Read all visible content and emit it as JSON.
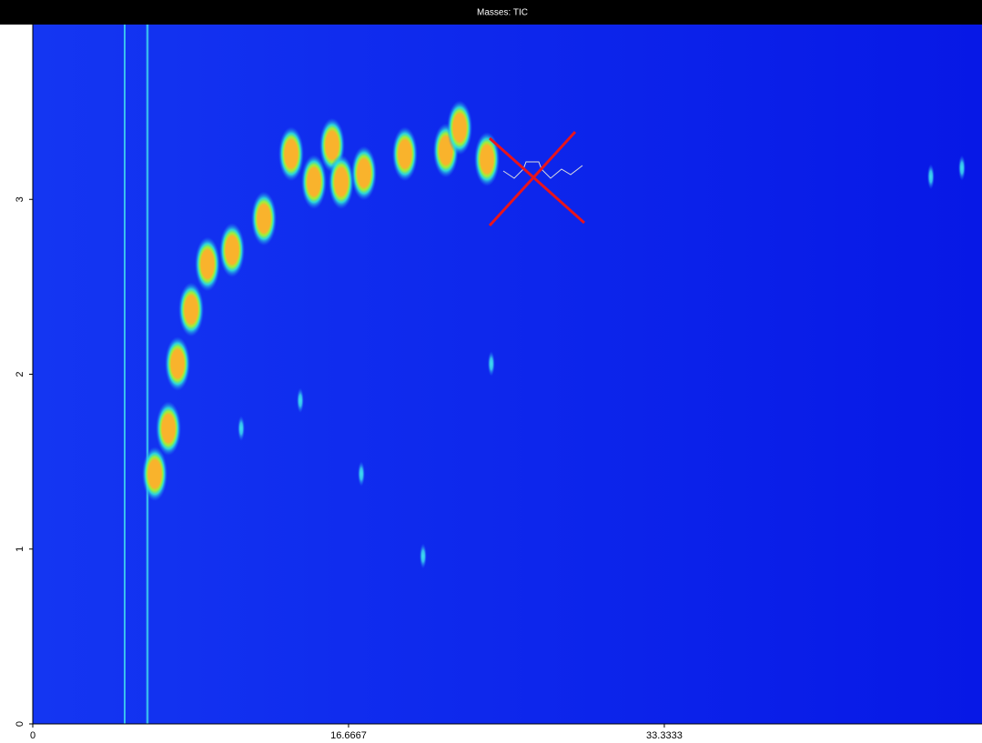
{
  "chart_data": {
    "type": "scatter",
    "title": "Masses: TIC",
    "xlim": [
      0,
      50.1
    ],
    "ylim": [
      0,
      4
    ],
    "xticks": [
      0,
      16.6667,
      33.3333
    ],
    "yticks": [
      0,
      1,
      2,
      3
    ],
    "series": [
      {
        "color": "#f9b32c",
        "x": [
          6.44,
          7.16,
          7.64,
          8.36,
          9.22,
          10.52,
          12.2,
          13.64,
          14.84,
          15.8,
          16.28,
          17.48,
          19.64,
          21.8,
          22.53,
          23.97
        ],
        "values": [
          1.43,
          1.69,
          2.06,
          2.37,
          2.63,
          2.71,
          2.89,
          3.26,
          3.1,
          3.31,
          3.1,
          3.15,
          3.26,
          3.28,
          3.41,
          3.23
        ]
      },
      {
        "color": "#3fe2ef",
        "x": [
          11.0,
          14.12,
          17.34,
          20.6,
          24.2,
          47.4,
          49.04
        ],
        "values": [
          1.69,
          1.85,
          1.43,
          0.96,
          2.06,
          3.13,
          3.18
        ]
      }
    ]
  }
}
